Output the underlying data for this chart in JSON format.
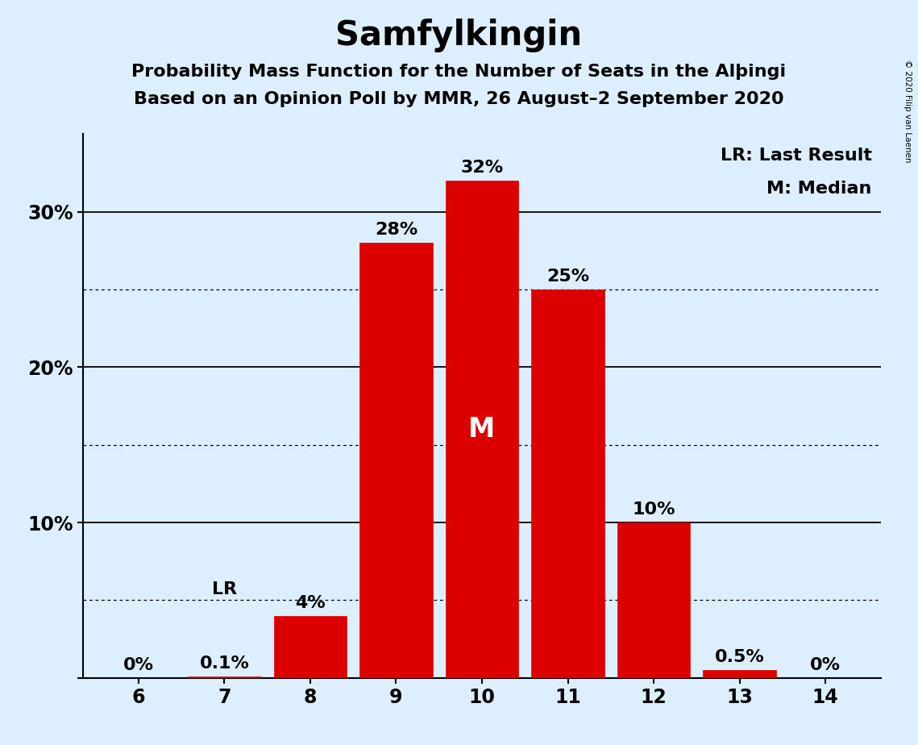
{
  "title": "Samfylkingin",
  "subtitle1": "Probability Mass Function for the Number of Seats in the Alþingi",
  "subtitle2": "Based on an Opinion Poll by MMR, 26 August–2 September 2020",
  "copyright": "© 2020 Filip van Laenen",
  "categories": [
    6,
    7,
    8,
    9,
    10,
    11,
    12,
    13,
    14
  ],
  "values": [
    0.0,
    0.1,
    4.0,
    28.0,
    32.0,
    25.0,
    10.0,
    0.5,
    0.0
  ],
  "labels": [
    "0%",
    "0.1%",
    "4%",
    "28%",
    "32%",
    "25%",
    "10%",
    "0.5%",
    "0%"
  ],
  "bar_color": "#dd0000",
  "background_color": "#ddeeff",
  "median_seat": 10,
  "lr_seat": 7,
  "legend_lr": "LR: Last Result",
  "legend_m": "M: Median",
  "ylim": [
    0,
    35
  ],
  "title_fontsize": 30,
  "subtitle_fontsize": 16,
  "label_fontsize": 16,
  "tick_fontsize": 17,
  "legend_fontsize": 16
}
